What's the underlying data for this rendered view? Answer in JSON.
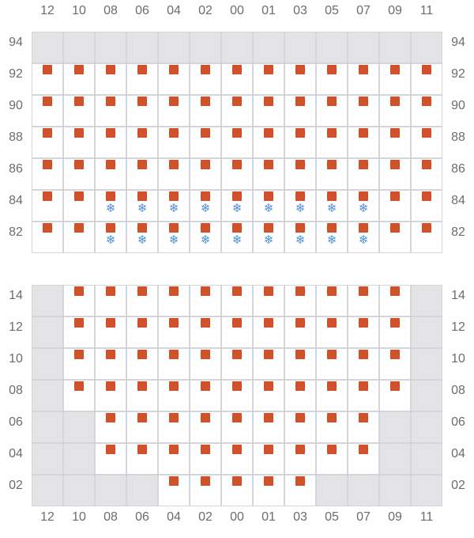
{
  "columns": [
    "12",
    "10",
    "08",
    "06",
    "04",
    "02",
    "00",
    "01",
    "03",
    "05",
    "07",
    "09",
    "11"
  ],
  "legend_codes": {
    "g": "unavailable",
    "e": "empty",
    "m": "occupied",
    "s": "occupied-cold"
  },
  "colors": {
    "occupied": "#cf522b",
    "unavailable": "#e4e4e7",
    "grid_line": "#d6d6da",
    "snowflake": "#4a90d9",
    "label": "#6b6b73"
  },
  "icons": {
    "occupied": "square",
    "cold": "snowflake-icon"
  },
  "grids": [
    {
      "rows": [
        {
          "label": "94",
          "cells": "ggggggggggggg"
        },
        {
          "label": "92",
          "cells": "mmmmmmmmmmmmm"
        },
        {
          "label": "90",
          "cells": "mmmmmmmmmmmmm"
        },
        {
          "label": "88",
          "cells": "mmmmmmmmmmmmm"
        },
        {
          "label": "86",
          "cells": "mmmmmmmmmmmmm"
        },
        {
          "label": "84",
          "cells": "mmsssssssssmm"
        },
        {
          "label": "82",
          "cells": "mmsssssssssmm"
        }
      ]
    },
    {
      "rows": [
        {
          "label": "14",
          "cells": "gmmmmmmmmmmmg"
        },
        {
          "label": "12",
          "cells": "gmmmmmmmmmmmg"
        },
        {
          "label": "10",
          "cells": "gmmmmmmmmmmmg"
        },
        {
          "label": "08",
          "cells": "gmmmmmmmmmmmg"
        },
        {
          "label": "06",
          "cells": "ggmmmmmmmmmgg"
        },
        {
          "label": "04",
          "cells": "ggmmmmmmmmmgg"
        },
        {
          "label": "02",
          "cells": "ggggmmmmmgggg"
        }
      ]
    }
  ]
}
